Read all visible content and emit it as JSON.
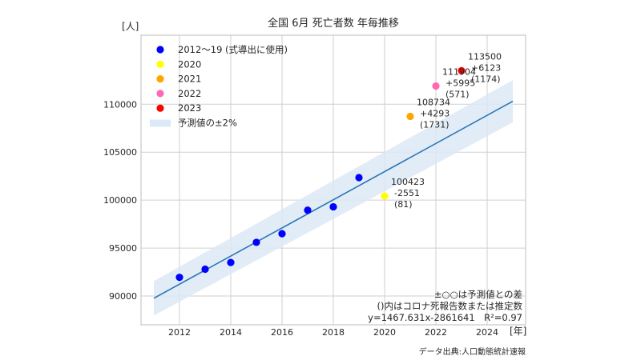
{
  "chart_data": {
    "type": "scatter",
    "title": "全国 6月 死亡者数 年毎推移",
    "ylabel": "[人]",
    "xlabel": "[年]",
    "xlim": [
      2010.5,
      2025.5
    ],
    "ylim": [
      87000,
      117200
    ],
    "x_ticks": [
      2012,
      2014,
      2016,
      2018,
      2020,
      2022,
      2024
    ],
    "y_ticks": [
      90000,
      95000,
      100000,
      105000,
      110000
    ],
    "grid": true,
    "legend_position": "top-left",
    "regression": {
      "slope": 1467.631,
      "intercept": -2861641,
      "x_range": [
        2011,
        2025
      ],
      "band_fraction": 0.02,
      "color": "#2b76b5",
      "band_color": "#dce9f6"
    },
    "series": [
      {
        "name": "2012〜19 (式導出に使用)",
        "color": "#0000ff",
        "points": [
          {
            "x": 2012,
            "y": 91950
          },
          {
            "x": 2013,
            "y": 92800
          },
          {
            "x": 2014,
            "y": 93500
          },
          {
            "x": 2015,
            "y": 95600
          },
          {
            "x": 2016,
            "y": 96500
          },
          {
            "x": 2017,
            "y": 98950
          },
          {
            "x": 2018,
            "y": 99300
          },
          {
            "x": 2019,
            "y": 102350
          }
        ]
      },
      {
        "name": "2020",
        "color": "#ffff00",
        "points": [
          {
            "x": 2020,
            "y": 100423
          }
        ]
      },
      {
        "name": "2021",
        "color": "#ffa500",
        "points": [
          {
            "x": 2021,
            "y": 108734
          }
        ]
      },
      {
        "name": "2022",
        "color": "#ff69b4",
        "points": [
          {
            "x": 2022,
            "y": 111904
          }
        ]
      },
      {
        "name": "2023",
        "color": "#ff0000",
        "points": [
          {
            "x": 2023,
            "y": 113500
          }
        ]
      }
    ],
    "band_legend_label": "予測値の±2%",
    "point_annotations": [
      {
        "x": 2020,
        "y": 100423,
        "lines": [
          "100423",
          "-2551",
          "(81)"
        ]
      },
      {
        "x": 2021,
        "y": 108734,
        "lines": [
          "108734",
          "+4293",
          "(1731)"
        ]
      },
      {
        "x": 2022,
        "y": 111904,
        "lines": [
          "111904",
          "+5995",
          "(571)"
        ]
      },
      {
        "x": 2023,
        "y": 113500,
        "lines": [
          "113500",
          "+6123",
          "(1174)"
        ]
      }
    ],
    "notes": [
      "±○○は予測値との差",
      "()内はコロナ死報告数または推定数",
      "y=1467.631x-2861641　R²=0.97"
    ],
    "source": "データ出典:人口動態統計速報"
  }
}
